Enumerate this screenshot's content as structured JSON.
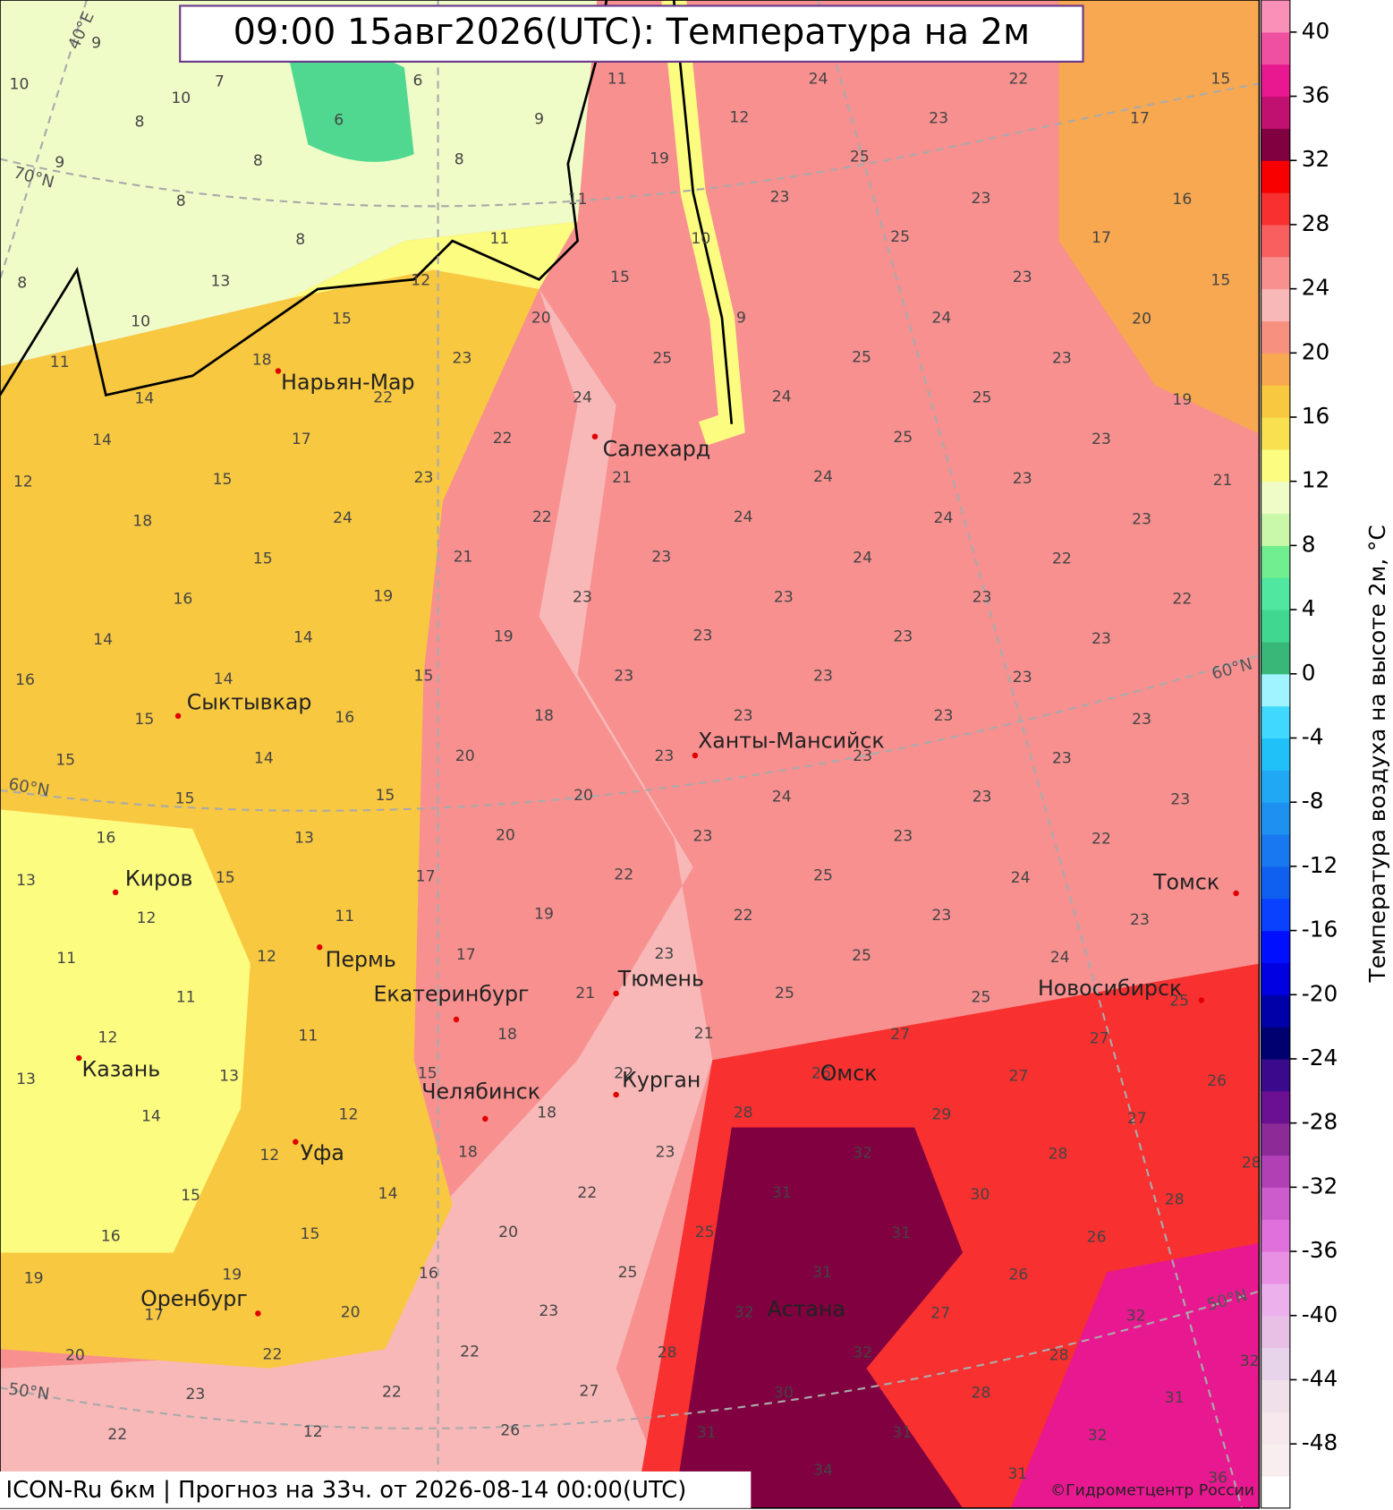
{
  "title": "09:00 15авг2026(UTC): Температура на 2м",
  "footer": "ICON-Ru 6км | Прогноз на  33ч. от 2026-08-14 00:00(UTC)",
  "copyright": "©Гидрометцентр России",
  "colorbar": {
    "label": "Температура воздуха на высоте 2м, °C",
    "lim": [
      -52,
      42
    ],
    "ticks": [
      40,
      36,
      32,
      28,
      24,
      20,
      16,
      12,
      8,
      4,
      0,
      -4,
      -8,
      -12,
      -16,
      -20,
      -24,
      -28,
      -32,
      -36,
      -40,
      -44,
      -48
    ],
    "colors": [
      "#ffffff",
      "#f8eef0",
      "#f6e8ec",
      "#f0e0ea",
      "#e8d4ea",
      "#e8c0e6",
      "#ecb0ec",
      "#e890e4",
      "#e070dc",
      "#cc5ccc",
      "#b040b4",
      "#8c2a98",
      "#6a1090",
      "#3a0a8c",
      "#000070",
      "#0000a8",
      "#0000e0",
      "#0010ff",
      "#0a40ff",
      "#1060f0",
      "#1878f0",
      "#1e90f0",
      "#20a8f4",
      "#20c0f8",
      "#40d8ff",
      "#a0f4ff",
      "#38b878",
      "#40d890",
      "#50e8a0",
      "#70ee90",
      "#c8f8a8",
      "#f0fcc8",
      "#fcfc80",
      "#f8e050",
      "#f8c840",
      "#f8a850",
      "#f89080",
      "#f8b8b8",
      "#f89090",
      "#f86060",
      "#f83030",
      "#f80000",
      "#800040",
      "#c01070",
      "#e81890",
      "#f050a0",
      "#f890b8"
    ]
  },
  "cities": [
    "Нарьян-Мар",
    "Салехард",
    "Сыктывкар",
    "Ханты-Мансийск",
    "Киров",
    "Пермь",
    "Екатеринбург",
    "Тюмень",
    "Томск",
    "Новосибирск",
    "Казань",
    "Омск",
    "Курган",
    "Челябинск",
    "Уфа",
    "Оренбург",
    "Астана"
  ],
  "graticule_labels": [
    "40°E",
    "70°N",
    "60°N",
    "60°N",
    "50°N",
    "50°N"
  ],
  "temperature_labels": [
    9,
    10,
    7,
    8,
    9,
    8,
    8,
    8,
    8,
    10,
    11,
    6,
    6,
    9,
    8,
    11,
    11,
    19,
    10,
    12,
    23,
    24,
    25,
    23,
    22,
    17,
    15,
    23,
    17,
    16,
    25,
    23,
    15,
    20,
    24,
    9,
    25,
    25,
    23,
    19,
    24,
    25,
    25,
    23,
    24,
    23,
    21,
    24,
    24,
    23,
    24,
    22,
    23,
    23,
    23,
    22,
    23,
    23,
    23,
    23,
    23,
    23,
    23,
    23,
    23,
    23,
    23,
    23,
    23,
    24,
    23,
    23,
    23,
    23,
    22,
    25,
    24,
    22,
    23,
    23,
    25,
    24,
    25,
    25,
    25,
    27,
    27,
    26,
    27,
    26,
    28,
    29,
    27,
    32,
    28,
    28,
    31,
    30,
    28,
    31,
    26,
    31,
    26,
    32,
    27,
    32,
    32,
    28,
    32,
    30,
    28,
    31,
    31,
    32,
    34,
    31,
    36,
    31,
    28,
    27,
    26,
    23,
    25,
    25,
    22,
    20,
    23,
    18,
    18,
    15,
    18,
    21,
    23,
    21,
    22,
    17,
    19,
    22,
    17,
    20,
    20,
    20,
    18,
    15,
    19,
    19,
    21,
    22,
    24,
    23,
    22,
    22,
    23,
    20,
    24,
    21,
    15,
    11,
    12,
    15,
    18,
    17,
    15,
    18,
    15,
    16,
    14,
    14,
    14,
    16,
    15,
    16,
    15,
    14,
    15,
    15,
    16,
    13,
    13,
    15,
    11,
    12,
    12,
    11,
    11,
    12,
    11,
    13,
    13,
    12,
    14,
    12,
    15,
    14,
    16,
    15,
    19,
    16,
    19,
    17,
    20,
    20,
    22,
    22,
    23,
    22,
    22,
    12,
    10,
    13,
    14,
    14,
    12
  ]
}
